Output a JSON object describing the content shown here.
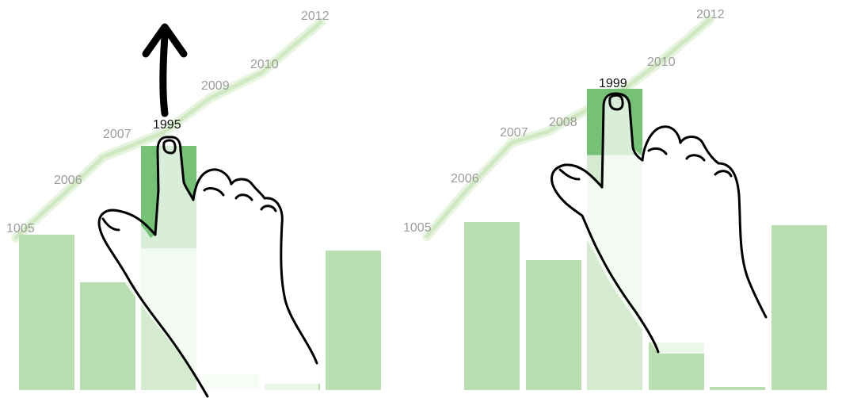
{
  "colors": {
    "bar": "#b9dfb0",
    "bar_selected": "#75c276",
    "bar_under_hand": "#d4ebcf",
    "bar_faded": "#e6f4e1",
    "label": "#9c9c9c",
    "label_selected": "#111111",
    "trend": "#cde8c0"
  },
  "icons": {
    "swipe_up": "arrow-up-icon",
    "hand": "hand-pointer-icon"
  },
  "panels": [
    {
      "bar_levels": [
        0.49,
        0.34,
        0.77,
        0.05,
        0.02,
        0.44
      ],
      "selected_index": 2,
      "selected_label": "1995",
      "show_swipe_arrow": true,
      "timeline_labels": [
        "1005",
        "2006",
        "2007",
        "2009",
        "2010",
        "2012"
      ]
    },
    {
      "bar_levels": [
        0.53,
        0.41,
        0.95,
        0.15,
        0.01,
        0.52
      ],
      "selected_index": 2,
      "selected_label": "1999",
      "show_swipe_arrow": false,
      "timeline_labels": [
        "1005",
        "2006",
        "2007",
        "2008",
        "2010",
        "2012"
      ]
    }
  ]
}
